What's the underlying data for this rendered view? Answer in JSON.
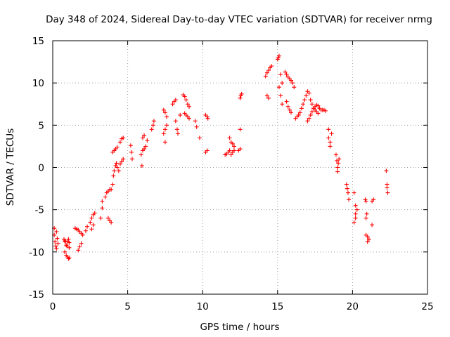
{
  "chart_data": {
    "type": "scatter",
    "title": "Day 348 of 2024, Sidereal Day-to-day VTEC variation (SDTVAR) for receiver nrmg",
    "xlabel": "GPS time / hours",
    "ylabel": "SDTVAR / TECUs",
    "xlim": [
      0,
      25
    ],
    "ylim": [
      -15,
      15
    ],
    "xticks": [
      "0",
      "5",
      "10",
      "15",
      "20",
      "25"
    ],
    "yticks": [
      "-15",
      "-10",
      "-5",
      "0",
      "5",
      "10",
      "15"
    ],
    "grid": true,
    "marker": "plus",
    "color": "#ff0000",
    "series": [
      {
        "name": "SDTVAR",
        "x": [
          0.1,
          0.1,
          0.15,
          0.2,
          0.25,
          0.25,
          0.3,
          0.35,
          0.75,
          0.8,
          0.85,
          0.9,
          0.95,
          1.0,
          1.05,
          1.1,
          1.1,
          0.8,
          0.9,
          1.0,
          1.05,
          1.1,
          1.5,
          1.6,
          1.7,
          1.8,
          1.9,
          2.0,
          1.7,
          1.8,
          1.9,
          2.2,
          2.3,
          2.5,
          2.6,
          2.7,
          2.8,
          2.6,
          2.7,
          3.2,
          3.3,
          3.3,
          3.5,
          3.6,
          3.7,
          3.8,
          3.9,
          3.7,
          3.8,
          3.9,
          4.0,
          4.05,
          4.1,
          4.2,
          4.25,
          4.3,
          4.4,
          4.5,
          4.6,
          4.7,
          4.5,
          4.6,
          4.7,
          4.0,
          4.1,
          4.2,
          4.3,
          5.2,
          5.25,
          5.3,
          5.9,
          6.0,
          6.1,
          6.2,
          6.3,
          6.0,
          6.1,
          5.95,
          6.6,
          6.7,
          6.75,
          7.4,
          7.5,
          7.6,
          7.4,
          7.5,
          7.6,
          7.5,
          8.0,
          8.1,
          8.2,
          8.2,
          8.3,
          8.35,
          8.7,
          8.8,
          8.9,
          9.0,
          9.1,
          8.8,
          8.9,
          9.0,
          9.1,
          8.5,
          9.5,
          9.6,
          10.2,
          10.3,
          10.35,
          10.2,
          10.3,
          9.8,
          11.5,
          11.6,
          11.7,
          11.8,
          11.8,
          11.9,
          12.0,
          12.1,
          11.9,
          12.0,
          12.1,
          12.5,
          12.55,
          12.6,
          12.4,
          12.5,
          12.5,
          14.2,
          14.3,
          14.4,
          14.5,
          14.6,
          14.3,
          14.4,
          15.0,
          15.05,
          15.1,
          15.2,
          15.3,
          15.1,
          15.2,
          15.3,
          15.5,
          15.6,
          15.7,
          15.8,
          15.9,
          16.0,
          16.1,
          15.6,
          15.7,
          15.8,
          15.9,
          16.2,
          16.3,
          16.4,
          16.5,
          16.6,
          16.7,
          16.8,
          16.9,
          17.0,
          17.1,
          17.2,
          17.3,
          17.4,
          17.5,
          17.6,
          17.7,
          17.0,
          17.1,
          17.2,
          17.3,
          17.4,
          17.5,
          17.6,
          17.7,
          17.8,
          17.9,
          18.0,
          18.1,
          18.2,
          18.4,
          18.4,
          18.5,
          18.5,
          18.6,
          18.9,
          18.95,
          19.0,
          19.0,
          19.05,
          19.1,
          19.6,
          19.7,
          19.75,
          19.65,
          20.1,
          20.2,
          20.2,
          20.1,
          20.3,
          20.2,
          20.85,
          20.9,
          20.95,
          20.9,
          21.0,
          21.1,
          20.9,
          21.0,
          21.3,
          21.4,
          21.3,
          22.25,
          22.3,
          22.3,
          22.35
        ],
        "y": [
          -7.2,
          -8.0,
          -8.8,
          -9.3,
          -9.6,
          -7.6,
          -8.4,
          -9.0,
          -8.5,
          -8.7,
          -8.8,
          -9.2,
          -9.3,
          -8.8,
          -8.5,
          -8.9,
          -9.5,
          -10.0,
          -10.4,
          -10.6,
          -10.8,
          -10.7,
          -7.2,
          -7.3,
          -7.4,
          -7.6,
          -7.8,
          -8.0,
          -9.8,
          -9.4,
          -9.0,
          -7.5,
          -7.0,
          -6.5,
          -6.0,
          -5.6,
          -5.4,
          -7.3,
          -6.8,
          -6.0,
          -4.8,
          -4.0,
          -3.5,
          -3.0,
          -2.8,
          -2.6,
          -2.6,
          -6.0,
          -6.3,
          -6.5,
          -2.0,
          -1.0,
          -0.4,
          0.2,
          0.5,
          0.0,
          -0.4,
          0.4,
          0.7,
          1.0,
          3.0,
          3.4,
          3.5,
          1.8,
          2.0,
          2.2,
          2.4,
          2.6,
          1.8,
          1.0,
          1.5,
          2.0,
          2.2,
          2.5,
          3.2,
          3.5,
          3.8,
          0.2,
          4.5,
          5.0,
          5.5,
          6.8,
          6.5,
          6.0,
          4.0,
          4.5,
          5.0,
          3.0,
          7.5,
          7.8,
          8.0,
          5.5,
          4.5,
          4.0,
          8.6,
          8.4,
          8.0,
          7.5,
          7.2,
          6.4,
          6.2,
          6.0,
          5.8,
          6.2,
          5.5,
          4.8,
          6.2,
          6.0,
          5.8,
          1.8,
          2.0,
          3.5,
          1.5,
          1.6,
          1.8,
          2.0,
          3.5,
          3.0,
          2.8,
          2.5,
          1.5,
          1.8,
          2.0,
          8.2,
          8.5,
          8.7,
          2.0,
          2.2,
          4.5,
          10.8,
          11.2,
          11.5,
          11.8,
          12.0,
          8.5,
          8.2,
          12.8,
          13.0,
          13.2,
          11.0,
          10.0,
          9.5,
          8.5,
          7.5,
          11.3,
          11.0,
          10.7,
          10.5,
          10.3,
          10.0,
          9.5,
          7.8,
          7.2,
          6.8,
          6.5,
          5.8,
          6.0,
          6.2,
          6.5,
          7.0,
          7.5,
          8.0,
          8.5,
          9.0,
          8.8,
          8.0,
          7.5,
          7.0,
          6.8,
          6.6,
          6.4,
          5.5,
          5.8,
          6.2,
          6.6,
          7.0,
          7.2,
          7.4,
          7.3,
          7.0,
          6.8,
          6.8,
          6.8,
          6.7,
          4.5,
          3.5,
          2.5,
          3.0,
          4.0,
          1.5,
          0.8,
          0.0,
          -0.5,
          0.5,
          1.0,
          -2.0,
          -3.0,
          -3.8,
          -2.5,
          -3.0,
          -4.5,
          -5.5,
          -6.5,
          -5.0,
          -6.0,
          -3.8,
          -4.0,
          -5.5,
          -6.0,
          -8.8,
          -8.5,
          -8.0,
          -8.2,
          -4.0,
          -3.8,
          -6.8,
          -0.4,
          -2.0,
          -2.4,
          -3.0
        ]
      }
    ]
  }
}
